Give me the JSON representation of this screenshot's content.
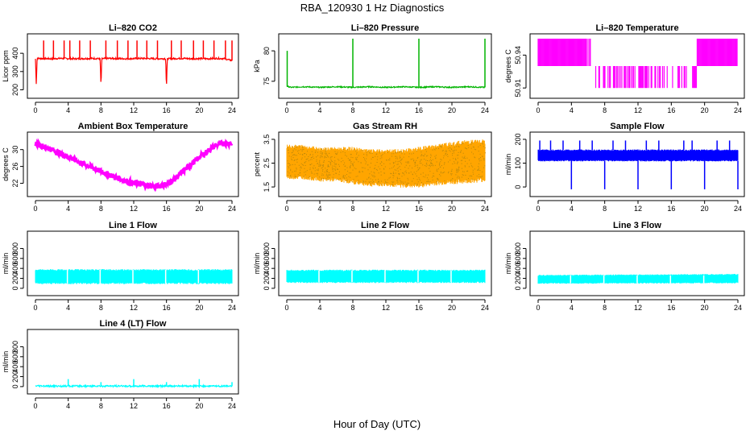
{
  "figure": {
    "title": "RBA_120930  1 Hz Diagnostics",
    "xlabel": "Hour of Day (UTC)"
  },
  "chart_data": [
    {
      "type": "line",
      "title": "Li–820 CO2",
      "ylabel": "Licor ppm",
      "color": "#ff0000",
      "xlim": [
        0,
        24
      ],
      "ylim": [
        180,
        480
      ],
      "x_ticks": [
        0,
        4,
        8,
        12,
        16,
        20,
        24
      ],
      "y_ticks": [
        200,
        300,
        400
      ],
      "series": [
        {
          "x": [
            0,
            0.1,
            0.2,
            0.3,
            1,
            2,
            3,
            4,
            5,
            6,
            7,
            7.9,
            8,
            8.1,
            9,
            10,
            11,
            12,
            13,
            14,
            15,
            15.9,
            16,
            16.1,
            17,
            18,
            19,
            20,
            21,
            22,
            23,
            24
          ],
          "y": [
            370,
            230,
            370,
            372,
            371,
            370,
            372,
            371,
            370,
            371,
            372,
            370,
            215,
            370,
            372,
            371,
            370,
            371,
            372,
            371,
            370,
            371,
            205,
            370,
            371,
            372,
            370,
            371,
            370,
            372,
            371,
            360
          ]
        },
        {
          "type": "spikes",
          "x": [
            1.0,
            2.2,
            3.5,
            4.2,
            5.4,
            6.7,
            8.6,
            10.0,
            11.3,
            12.4,
            13.6,
            14.9,
            16.6,
            17.8,
            19.3,
            20.5,
            21.8,
            23.2,
            24.0
          ],
          "y": [
            470,
            470,
            470,
            470,
            470,
            470,
            470,
            470,
            470,
            470,
            470,
            470,
            470,
            470,
            470,
            470,
            470,
            470,
            470
          ]
        }
      ]
    },
    {
      "type": "line",
      "title": "Li–820 Pressure",
      "ylabel": "kPa",
      "color": "#00b400",
      "xlim": [
        0,
        24
      ],
      "ylim": [
        73,
        82
      ],
      "x_ticks": [
        0,
        4,
        8,
        12,
        16,
        20,
        24
      ],
      "y_ticks": [
        75,
        80
      ],
      "series": [
        {
          "x": [
            0,
            0.5,
            2,
            4,
            6,
            8,
            10,
            12,
            14,
            16,
            18,
            20,
            22,
            24
          ],
          "y": [
            74.2,
            74.0,
            74.1,
            74.0,
            74.1,
            74.0,
            74.1,
            74.0,
            74.1,
            74.0,
            74.1,
            74.0,
            74.1,
            74.0
          ]
        },
        {
          "type": "spikes",
          "x": [
            0.05,
            8.0,
            16.0,
            24.0
          ],
          "y": [
            80,
            82,
            82,
            82
          ]
        }
      ]
    },
    {
      "type": "area",
      "title": "Li–820 Temperature",
      "ylabel": "degrees C",
      "color": "#ff00ff",
      "xlim": [
        0,
        24
      ],
      "ylim": [
        50.905,
        50.955
      ],
      "x_ticks": [
        0,
        4,
        8,
        12,
        16,
        20,
        24
      ],
      "y_ticks": [
        50.91,
        50.94
      ],
      "series": [
        {
          "x": [
            0,
            5.8,
            6.2,
            6.6,
            7.0,
            7.4,
            19.2,
            24
          ],
          "y_low": [
            50.93,
            50.93,
            50.93,
            50.93,
            50.91,
            50.91,
            50.93,
            50.93
          ],
          "y_high": [
            50.955,
            50.955,
            50.955,
            50.955,
            50.93,
            50.93,
            50.955,
            50.955
          ]
        }
      ]
    },
    {
      "type": "line",
      "title": "Ambient Box Temperature",
      "ylabel": "degrees C",
      "color": "#ff00ff",
      "xlim": [
        0,
        24
      ],
      "ylim": [
        20,
        33
      ],
      "x_ticks": [
        0,
        4,
        8,
        12,
        16,
        20,
        24
      ],
      "y_ticks": [
        22,
        26,
        30
      ],
      "series": [
        {
          "x": [
            0,
            2,
            4,
            6,
            8,
            10,
            12,
            14,
            15,
            16,
            17,
            18,
            20,
            22,
            23,
            24
          ],
          "y": [
            31.5,
            30.0,
            28.3,
            26.5,
            24.8,
            23.3,
            22.0,
            21.4,
            21.3,
            21.8,
            23.0,
            24.8,
            28.2,
            31.0,
            31.5,
            31.5
          ]
        }
      ]
    },
    {
      "type": "area",
      "title": "Gas Stream RH",
      "ylabel": "percent",
      "color": "#ffa500",
      "xlim": [
        0,
        24
      ],
      "ylim": [
        1.3,
        3.6
      ],
      "x_ticks": [
        0,
        4,
        8,
        12,
        16,
        20,
        24
      ],
      "y_ticks": [
        1.5,
        2.5,
        3.5
      ],
      "series": [
        {
          "x": [
            0,
            2,
            4,
            6,
            8,
            10,
            12,
            14,
            16,
            18,
            20,
            22,
            24
          ],
          "y_low": [
            1.9,
            1.9,
            1.8,
            1.8,
            1.7,
            1.6,
            1.6,
            1.55,
            1.55,
            1.65,
            1.7,
            1.75,
            1.8
          ],
          "y_high": [
            3.2,
            3.2,
            3.1,
            3.1,
            3.1,
            3.0,
            3.0,
            3.0,
            3.1,
            3.2,
            3.3,
            3.4,
            3.4
          ]
        }
      ]
    },
    {
      "type": "area",
      "title": "Sample Flow",
      "ylabel": "ml/min",
      "color": "#0000ff",
      "xlim": [
        0,
        24
      ],
      "ylim": [
        -20,
        210
      ],
      "x_ticks": [
        0,
        4,
        8,
        12,
        16,
        20,
        24
      ],
      "y_ticks": [
        0,
        100,
        200
      ],
      "series": [
        {
          "x": [
            0,
            24
          ],
          "y_low": [
            110,
            110
          ],
          "y_high": [
            155,
            155
          ]
        },
        {
          "type": "spikes",
          "x": [
            0.2,
            1.5,
            3.0,
            5.0,
            6.5,
            9.0,
            10.5,
            13.0,
            14.5,
            17.5,
            18.5,
            21.5,
            23.0
          ],
          "y": [
            195,
            195,
            195,
            195,
            195,
            195,
            195,
            195,
            195,
            195,
            195,
            195,
            195
          ]
        },
        {
          "type": "dips",
          "x": [
            4.0,
            8.0,
            12.0,
            16.0,
            20.0,
            24.0
          ],
          "y": [
            -10,
            -10,
            -10,
            -10,
            -10,
            -10
          ]
        }
      ]
    },
    {
      "type": "area",
      "title": "Line 1 Flow",
      "ylabel": "ml/min",
      "color": "#00ffff",
      "xlim": [
        0,
        24
      ],
      "ylim": [
        -50,
        1050
      ],
      "x_ticks": [
        0,
        4,
        8,
        12,
        16,
        20,
        24
      ],
      "y_ticks": [
        0,
        200,
        400,
        600,
        800
      ],
      "series": [
        {
          "x": [
            0,
            24
          ],
          "y_low": [
            100,
            100
          ],
          "y_high": [
            370,
            370
          ]
        },
        {
          "type": "gaps",
          "x": [
            3.9,
            7.9,
            11.9,
            15.9,
            19.9
          ]
        }
      ]
    },
    {
      "type": "area",
      "title": "Line 2 Flow",
      "ylabel": "ml/min",
      "color": "#00ffff",
      "xlim": [
        0,
        24
      ],
      "ylim": [
        -50,
        1050
      ],
      "x_ticks": [
        0,
        4,
        8,
        12,
        16,
        20,
        24
      ],
      "y_ticks": [
        0,
        200,
        400,
        600,
        800
      ],
      "series": [
        {
          "x": [
            0,
            24
          ],
          "y_low": [
            120,
            120
          ],
          "y_high": [
            360,
            360
          ]
        },
        {
          "type": "gaps",
          "x": [
            3.9,
            7.9,
            11.9,
            15.9,
            19.9
          ]
        }
      ]
    },
    {
      "type": "area",
      "title": "Line 3 Flow",
      "ylabel": "ml/min",
      "color": "#00ffff",
      "xlim": [
        0,
        24
      ],
      "ylim": [
        -50,
        1050
      ],
      "x_ticks": [
        0,
        4,
        8,
        12,
        16,
        20,
        24
      ],
      "y_ticks": [
        0,
        200,
        400,
        600,
        800
      ],
      "series": [
        {
          "x": [
            0,
            24
          ],
          "y_low": [
            100,
            110
          ],
          "y_high": [
            260,
            280
          ]
        },
        {
          "type": "gaps",
          "x": [
            3.9,
            7.9,
            11.9,
            15.9,
            19.9
          ]
        }
      ]
    },
    {
      "type": "line",
      "title": "Line 4 (LT) Flow",
      "ylabel": "ml/min",
      "color": "#00ffff",
      "xlim": [
        0,
        24
      ],
      "ylim": [
        -50,
        1050
      ],
      "x_ticks": [
        0,
        4,
        8,
        12,
        16,
        20,
        24
      ],
      "y_ticks": [
        0,
        200,
        400,
        600,
        800
      ],
      "series": [
        {
          "x": [
            0,
            24
          ],
          "y": [
            10,
            10
          ]
        },
        {
          "type": "spikes",
          "x": [
            4.0,
            8.0,
            12.0,
            16.0,
            20.0,
            24.0
          ],
          "y": [
            150,
            90,
            150,
            90,
            150,
            90
          ]
        }
      ]
    }
  ]
}
